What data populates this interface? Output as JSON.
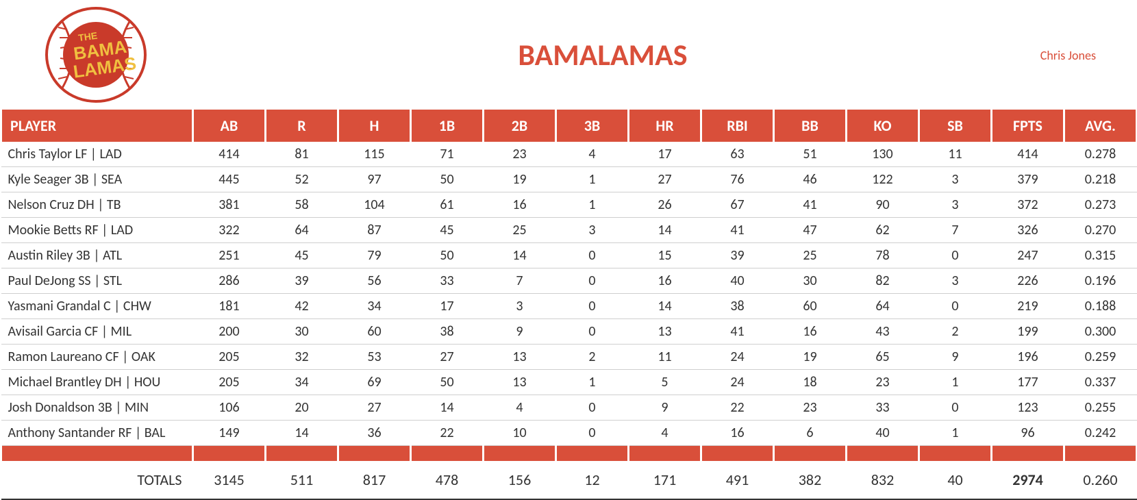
{
  "header": {
    "title": "BAMALAMAS",
    "owner": "Chris Jones",
    "logo_text_top": "THE",
    "logo_text_mid": "BAMA",
    "logo_text_bot": "LAMAS"
  },
  "colors": {
    "accent": "#d94f3a",
    "logo_yellow": "#f0c040",
    "logo_red": "#c93a2a",
    "white": "#ffffff",
    "text": "#333333"
  },
  "table": {
    "columns": [
      "PLAYER",
      "AB",
      "R",
      "H",
      "1B",
      "2B",
      "3B",
      "HR",
      "RBI",
      "BB",
      "KO",
      "SB",
      "FPTS",
      "AVG."
    ],
    "rows": [
      {
        "player": "Chris Taylor LF | LAD",
        "AB": "414",
        "R": "81",
        "H": "115",
        "1B": "71",
        "2B": "23",
        "3B": "4",
        "HR": "17",
        "RBI": "63",
        "BB": "51",
        "KO": "130",
        "SB": "11",
        "FPTS": "414",
        "AVG": "0.278"
      },
      {
        "player": "Kyle Seager 3B | SEA",
        "AB": "445",
        "R": "52",
        "H": "97",
        "1B": "50",
        "2B": "19",
        "3B": "1",
        "HR": "27",
        "RBI": "76",
        "BB": "46",
        "KO": "122",
        "SB": "3",
        "FPTS": "379",
        "AVG": "0.218"
      },
      {
        "player": "Nelson Cruz DH | TB",
        "AB": "381",
        "R": "58",
        "H": "104",
        "1B": "61",
        "2B": "16",
        "3B": "1",
        "HR": "26",
        "RBI": "67",
        "BB": "41",
        "KO": "90",
        "SB": "3",
        "FPTS": "372",
        "AVG": "0.273"
      },
      {
        "player": "Mookie Betts RF | LAD",
        "AB": "322",
        "R": "64",
        "H": "87",
        "1B": "45",
        "2B": "25",
        "3B": "3",
        "HR": "14",
        "RBI": "41",
        "BB": "47",
        "KO": "62",
        "SB": "7",
        "FPTS": "326",
        "AVG": "0.270"
      },
      {
        "player": "Austin Riley 3B | ATL",
        "AB": "251",
        "R": "45",
        "H": "79",
        "1B": "50",
        "2B": "14",
        "3B": "0",
        "HR": "15",
        "RBI": "39",
        "BB": "25",
        "KO": "78",
        "SB": "0",
        "FPTS": "247",
        "AVG": "0.315"
      },
      {
        "player": "Paul DeJong SS | STL",
        "AB": "286",
        "R": "39",
        "H": "56",
        "1B": "33",
        "2B": "7",
        "3B": "0",
        "HR": "16",
        "RBI": "40",
        "BB": "30",
        "KO": "82",
        "SB": "3",
        "FPTS": "226",
        "AVG": "0.196"
      },
      {
        "player": "Yasmani Grandal C | CHW",
        "AB": "181",
        "R": "42",
        "H": "34",
        "1B": "17",
        "2B": "3",
        "3B": "0",
        "HR": "14",
        "RBI": "38",
        "BB": "60",
        "KO": "64",
        "SB": "0",
        "FPTS": "219",
        "AVG": "0.188"
      },
      {
        "player": "Avisail Garcia CF | MIL",
        "AB": "200",
        "R": "30",
        "H": "60",
        "1B": "38",
        "2B": "9",
        "3B": "0",
        "HR": "13",
        "RBI": "41",
        "BB": "16",
        "KO": "43",
        "SB": "2",
        "FPTS": "199",
        "AVG": "0.300"
      },
      {
        "player": "Ramon Laureano CF | OAK",
        "AB": "205",
        "R": "32",
        "H": "53",
        "1B": "27",
        "2B": "13",
        "3B": "2",
        "HR": "11",
        "RBI": "24",
        "BB": "19",
        "KO": "65",
        "SB": "9",
        "FPTS": "196",
        "AVG": "0.259"
      },
      {
        "player": "Michael Brantley DH | HOU",
        "AB": "205",
        "R": "34",
        "H": "69",
        "1B": "50",
        "2B": "13",
        "3B": "1",
        "HR": "5",
        "RBI": "24",
        "BB": "18",
        "KO": "23",
        "SB": "1",
        "FPTS": "177",
        "AVG": "0.337"
      },
      {
        "player": "Josh Donaldson 3B | MIN",
        "AB": "106",
        "R": "20",
        "H": "27",
        "1B": "14",
        "2B": "4",
        "3B": "0",
        "HR": "9",
        "RBI": "22",
        "BB": "23",
        "KO": "33",
        "SB": "0",
        "FPTS": "123",
        "AVG": "0.255"
      },
      {
        "player": "Anthony Santander RF | BAL",
        "AB": "149",
        "R": "14",
        "H": "36",
        "1B": "22",
        "2B": "10",
        "3B": "0",
        "HR": "4",
        "RBI": "16",
        "BB": "6",
        "KO": "40",
        "SB": "1",
        "FPTS": "96",
        "AVG": "0.242"
      }
    ],
    "totals_label": "TOTALS",
    "totals": {
      "AB": "3145",
      "R": "511",
      "H": "817",
      "1B": "478",
      "2B": "156",
      "3B": "12",
      "HR": "171",
      "RBI": "491",
      "BB": "382",
      "KO": "832",
      "SB": "40",
      "FPTS": "2974",
      "AVG": "0.260"
    }
  }
}
